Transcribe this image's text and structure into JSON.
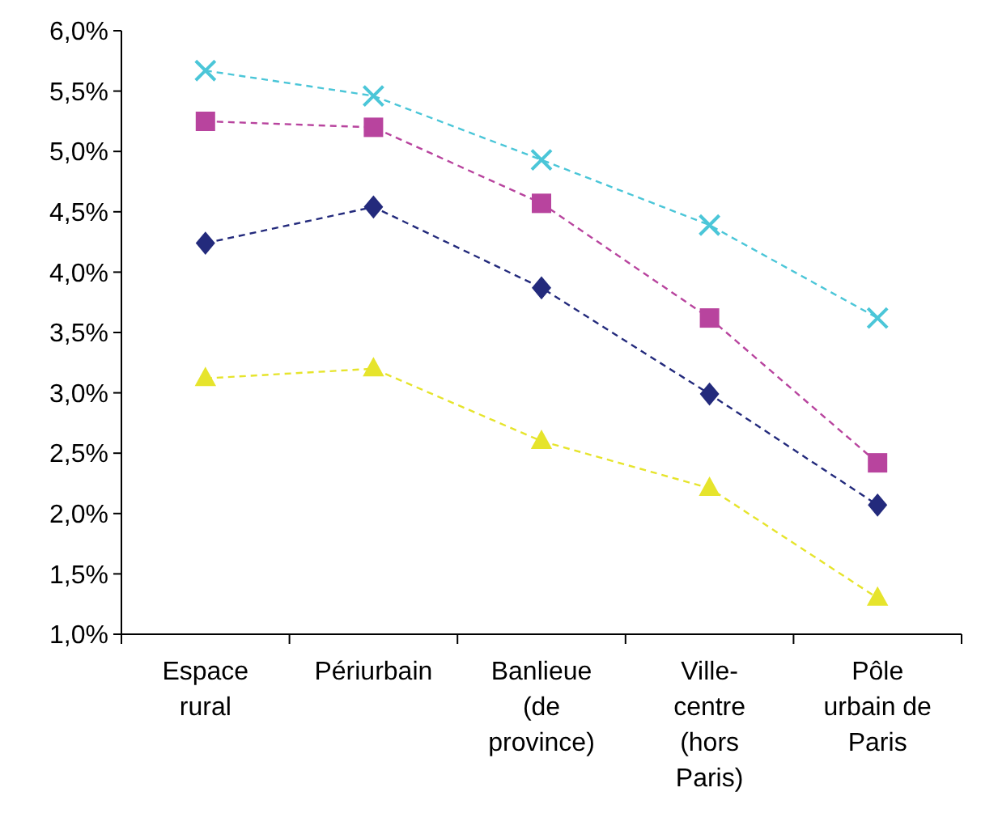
{
  "chart_data": {
    "type": "line",
    "categories": [
      "Espace rural",
      "Périurbain",
      "Banlieue (de province)",
      "Ville-centre (hors Paris)",
      "Pôle urbain de Paris"
    ],
    "series": [
      {
        "color": "#4bc6d8",
        "marker": "cross",
        "values": [
          5.67,
          5.46,
          4.93,
          4.39,
          3.62
        ]
      },
      {
        "color": "#b8449e",
        "marker": "square",
        "values": [
          5.25,
          5.2,
          4.57,
          3.62,
          2.42
        ]
      },
      {
        "color": "#232a7c",
        "marker": "diamond",
        "values": [
          4.24,
          4.54,
          3.87,
          2.99,
          2.07
        ]
      },
      {
        "color": "#e6e42c",
        "marker": "triangle",
        "values": [
          3.12,
          3.2,
          2.6,
          2.21,
          1.3
        ]
      }
    ],
    "ylim": [
      1,
      6
    ],
    "yticks": [
      {
        "value": 1,
        "label": "1,0%"
      },
      {
        "value": 1.5,
        "label": "1,5%"
      },
      {
        "value": 2,
        "label": "2,0%"
      },
      {
        "value": 2.5,
        "label": "2,5%"
      },
      {
        "value": 3,
        "label": "3,0%"
      },
      {
        "value": 3.5,
        "label": "3,5%"
      },
      {
        "value": 4,
        "label": "4,0%"
      },
      {
        "value": 4.5,
        "label": "4,5%"
      },
      {
        "value": 5,
        "label": "5,0%"
      },
      {
        "value": 5.5,
        "label": "5,5%"
      },
      {
        "value": 6,
        "label": "6,0%"
      }
    ],
    "line_style": "dashed",
    "grid": false
  }
}
